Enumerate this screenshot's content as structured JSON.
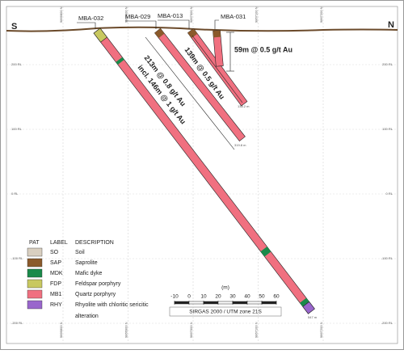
{
  "section": {
    "left": "S",
    "right": "N"
  },
  "holes": [
    {
      "name": "MBA-032",
      "depth": "547 m"
    },
    {
      "name": "MBA-029",
      "depth": "319.8 m"
    },
    {
      "name": "MBA-013",
      "depth": "138.2 m"
    },
    {
      "name": "MBA-031"
    }
  ],
  "intercepts": [
    "59m @ 0.5 g/t Au",
    "139m @ 0.5 g/t Au",
    "213m @ 0.8 g/t Au",
    "incl. 146m @ 1 g/t Au"
  ],
  "rl_labels": [
    "200 RL",
    "100 RL",
    "0 RL",
    "-100 RL",
    "-200 RL"
  ],
  "northings": [
    "9866800 N",
    "9866900 N",
    "9867000 N",
    "9867100 N",
    "9867200 N"
  ],
  "legend": {
    "headers": [
      "PAT",
      "LABEL",
      "DESCRIPTION"
    ],
    "rows": [
      {
        "label": "SO",
        "description": "Soil"
      },
      {
        "label": "SAP",
        "description": "Saprolite"
      },
      {
        "label": "MDK",
        "description": "Mafic dyke"
      },
      {
        "label": "FDP",
        "description": "Feldspar porphyry"
      },
      {
        "label": "MB1",
        "description": "Quartz porphyry"
      },
      {
        "label": "RHY",
        "description": "Rhyolite with chloritic sericitic",
        "extra": "alteration"
      }
    ]
  },
  "scale": {
    "ticks": [
      "-10",
      "0",
      "10",
      "20",
      "30",
      "40",
      "50",
      "60"
    ],
    "unit": "(m)",
    "projection": "SIRGAS 2000 / UTM zone 21S"
  }
}
